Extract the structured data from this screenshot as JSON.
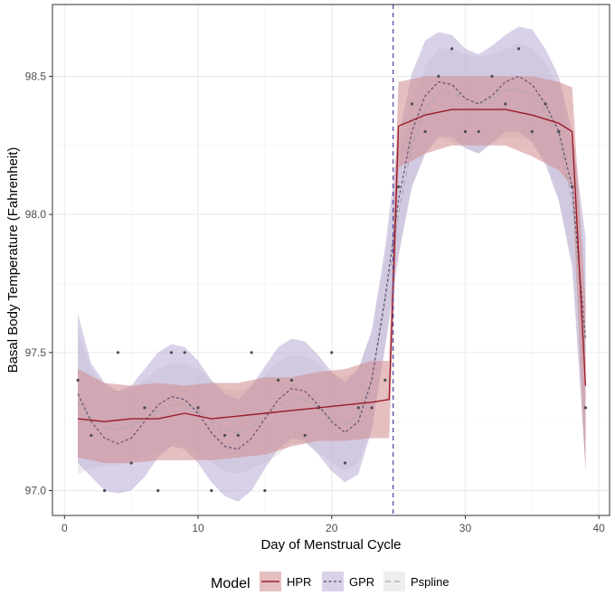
{
  "chart_data": {
    "type": "line",
    "xlabel": "Day of Menstrual Cycle",
    "ylabel": "Basal Body Temperature (Fahrenheit)",
    "xlim": [
      -0.9,
      40.8
    ],
    "ylim": [
      96.91,
      98.76
    ],
    "x_ticks": [
      0,
      10,
      20,
      30,
      40
    ],
    "x_tick_labels": [
      "0",
      "10",
      "20",
      "30",
      "40"
    ],
    "y_ticks": [
      97.0,
      97.5,
      98.0,
      98.5
    ],
    "y_tick_labels": [
      "97.0",
      "97.5",
      "98.0",
      "98.5"
    ],
    "grid": true,
    "legend_position": "bottom",
    "legend_title": "Model",
    "vline": {
      "x": 24.6,
      "color": "#5a4a9c"
    },
    "colors": {
      "HPR": "#9b1b2a",
      "HPR_band": "#cf8a8c",
      "GPR": "#5a4770",
      "GPR_band": "#b4a4cf",
      "Pspline": "#a9a9a9",
      "Pspline_band": "#dadada",
      "points": "#4d4d4d"
    },
    "points": {
      "x": [
        1,
        2,
        3,
        4,
        5,
        6,
        7,
        8,
        9,
        10,
        11,
        12,
        13,
        14,
        15,
        16,
        17,
        18,
        19,
        20,
        21,
        22,
        23,
        24,
        25,
        26,
        27,
        28,
        29,
        30,
        31,
        32,
        33,
        34,
        35,
        36,
        37,
        38,
        39
      ],
      "y": [
        97.4,
        97.2,
        97.0,
        97.5,
        97.1,
        97.3,
        97.0,
        97.5,
        97.5,
        97.3,
        97.0,
        97.2,
        97.2,
        97.5,
        97.0,
        97.4,
        97.4,
        97.2,
        97.3,
        97.5,
        97.1,
        97.3,
        97.3,
        97.4,
        98.1,
        98.4,
        98.3,
        98.5,
        98.6,
        98.3,
        98.3,
        98.5,
        98.4,
        98.6,
        98.3,
        98.4,
        98.3,
        98.1,
        97.3
      ]
    },
    "series": [
      {
        "name": "HPR",
        "x": [
          1,
          3,
          5,
          7,
          9,
          11,
          13,
          15,
          17,
          19,
          21,
          23,
          24.3,
          24.7,
          25,
          27,
          29,
          31,
          33,
          35,
          37,
          38,
          39
        ],
        "y": [
          97.26,
          97.25,
          97.26,
          97.26,
          97.28,
          97.26,
          97.27,
          97.28,
          97.29,
          97.3,
          97.31,
          97.32,
          97.33,
          97.88,
          98.32,
          98.36,
          98.38,
          98.38,
          98.38,
          98.36,
          98.33,
          98.3,
          97.38
        ],
        "lower": [
          97.12,
          97.1,
          97.1,
          97.11,
          97.11,
          97.11,
          97.12,
          97.13,
          97.16,
          97.18,
          97.18,
          97.19,
          97.19,
          97.72,
          98.17,
          98.22,
          98.25,
          98.25,
          98.25,
          98.21,
          98.16,
          98.1,
          97.06
        ],
        "upper": [
          97.44,
          97.39,
          97.38,
          97.39,
          97.38,
          97.39,
          97.39,
          97.41,
          97.41,
          97.43,
          97.44,
          97.47,
          97.47,
          98.08,
          98.48,
          98.5,
          98.5,
          98.5,
          98.5,
          98.5,
          98.48,
          98.46,
          97.68
        ]
      },
      {
        "name": "GPR",
        "x": [
          1,
          2,
          3,
          4,
          5,
          6,
          7,
          8,
          9,
          10,
          11,
          12,
          13,
          14,
          15,
          16,
          17,
          18,
          19,
          20,
          21,
          22,
          23,
          24,
          25,
          26,
          27,
          28,
          29,
          30,
          31,
          32,
          33,
          34,
          35,
          36,
          37,
          38,
          39
        ],
        "y": [
          97.35,
          97.25,
          97.19,
          97.17,
          97.19,
          97.25,
          97.31,
          97.34,
          97.33,
          97.28,
          97.21,
          97.16,
          97.15,
          97.19,
          97.26,
          97.33,
          97.37,
          97.36,
          97.31,
          97.25,
          97.21,
          97.25,
          97.4,
          97.7,
          98.05,
          98.3,
          98.43,
          98.48,
          98.47,
          98.42,
          98.4,
          98.43,
          98.48,
          98.5,
          98.47,
          98.4,
          98.3,
          98.1,
          97.55
        ],
        "lower": [
          97.1,
          97.05,
          97.0,
          96.99,
          97.0,
          97.05,
          97.12,
          97.16,
          97.15,
          97.1,
          97.03,
          96.98,
          96.96,
          97.0,
          97.08,
          97.15,
          97.19,
          97.18,
          97.13,
          97.07,
          97.03,
          97.06,
          97.22,
          97.52,
          97.85,
          98.1,
          98.22,
          98.28,
          98.28,
          98.24,
          98.22,
          98.26,
          98.3,
          98.3,
          98.26,
          98.18,
          98.05,
          97.82,
          97.08
        ],
        "upper": [
          97.64,
          97.46,
          97.39,
          97.36,
          97.38,
          97.44,
          97.5,
          97.53,
          97.52,
          97.47,
          97.4,
          97.35,
          97.33,
          97.38,
          97.45,
          97.52,
          97.55,
          97.54,
          97.49,
          97.43,
          97.39,
          97.44,
          97.58,
          97.88,
          98.28,
          98.51,
          98.63,
          98.66,
          98.65,
          98.6,
          98.58,
          98.61,
          98.65,
          98.68,
          98.67,
          98.6,
          98.5,
          98.3,
          97.92
        ]
      },
      {
        "name": "Pspline",
        "x": [
          1,
          2,
          3,
          4,
          5,
          6,
          7,
          8,
          9,
          10,
          11,
          12,
          13,
          14,
          15,
          16,
          17,
          18,
          19,
          20,
          21,
          22,
          23,
          24,
          25,
          26,
          27,
          28,
          29,
          30,
          31,
          32,
          33,
          34,
          35,
          36,
          37,
          38,
          39
        ],
        "y": [
          97.32,
          97.26,
          97.23,
          97.22,
          97.23,
          97.26,
          97.29,
          97.31,
          97.31,
          97.29,
          97.25,
          97.22,
          97.21,
          97.23,
          97.27,
          97.31,
          97.33,
          97.33,
          97.3,
          97.26,
          97.24,
          97.27,
          97.4,
          97.68,
          98.0,
          98.25,
          98.38,
          98.44,
          98.44,
          98.42,
          98.4,
          98.42,
          98.45,
          98.45,
          98.44,
          98.38,
          98.28,
          98.05,
          97.5
        ],
        "lower": [
          97.06,
          97.08,
          97.09,
          97.09,
          97.1,
          97.12,
          97.14,
          97.16,
          97.16,
          97.14,
          97.1,
          97.07,
          97.06,
          97.08,
          97.1,
          97.13,
          97.17,
          97.17,
          97.14,
          97.1,
          97.07,
          97.1,
          97.23,
          97.52,
          97.85,
          98.1,
          98.22,
          98.28,
          98.26,
          98.24,
          98.22,
          98.26,
          98.28,
          98.28,
          98.27,
          98.2,
          98.05,
          97.8,
          97.1
        ],
        "upper": [
          97.58,
          97.44,
          97.37,
          97.36,
          97.37,
          97.4,
          97.44,
          97.46,
          97.46,
          97.44,
          97.4,
          97.37,
          97.36,
          97.38,
          97.42,
          97.47,
          97.49,
          97.49,
          97.46,
          97.42,
          97.41,
          97.44,
          97.57,
          97.84,
          98.18,
          98.4,
          98.54,
          98.6,
          98.6,
          98.58,
          98.57,
          98.58,
          98.6,
          98.62,
          98.6,
          98.55,
          98.45,
          98.25,
          97.85
        ]
      }
    ]
  }
}
